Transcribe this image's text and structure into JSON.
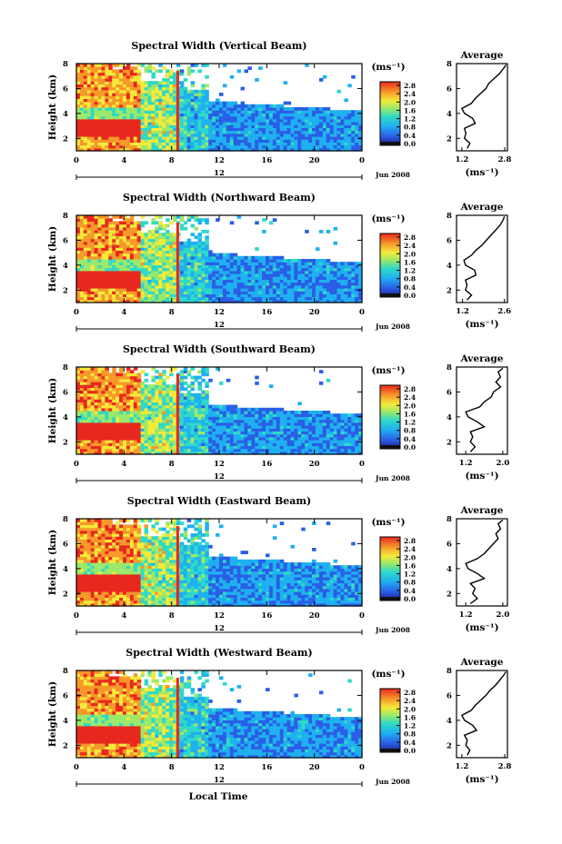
{
  "figure": {
    "bottom_label": "Local Time"
  },
  "chart_data": [
    {
      "type": "heatmap",
      "title": "Spectral Width (Vertical Beam)",
      "ylabel": "Height (km)",
      "yticks": [
        "2",
        "4",
        "6",
        "8"
      ],
      "ylim": [
        1,
        8
      ],
      "xticks": [
        "0",
        "4",
        "8",
        "12",
        "16",
        "20",
        "0"
      ],
      "xlim": [
        0,
        24
      ],
      "date_label": "Jun 2008",
      "date_center_tick": "12",
      "colorbar": {
        "unit": "(ms⁻¹)",
        "ticks": [
          "2.8",
          "2.4",
          "2.0",
          "1.6",
          "1.2",
          "0.8",
          "0.4",
          "0.0"
        ],
        "range": [
          0,
          2.8
        ]
      },
      "profile": {
        "title": "Average",
        "xlabel": "(ms⁻¹)",
        "xticks": [
          "1.2",
          "2.8"
        ],
        "xlim": [
          1.0,
          2.9
        ],
        "yticks": [
          "2",
          "4",
          "6",
          "8"
        ],
        "ylim": [
          1,
          8
        ],
        "heights": [
          1.2,
          1.6,
          2.0,
          2.4,
          2.8,
          3.2,
          3.6,
          4.0,
          4.4,
          4.8,
          5.2,
          5.6,
          6.0,
          6.4,
          6.8,
          7.2,
          7.6,
          7.9
        ],
        "values": [
          1.4,
          1.5,
          1.3,
          1.35,
          1.3,
          1.7,
          1.6,
          1.3,
          1.2,
          1.55,
          1.7,
          1.9,
          2.1,
          2.2,
          2.4,
          2.6,
          2.75,
          2.85
        ]
      }
    },
    {
      "type": "heatmap",
      "title": "Spectral Width (Northward Beam)",
      "ylabel": "Height (km)",
      "yticks": [
        "2",
        "4",
        "6",
        "8"
      ],
      "ylim": [
        1,
        8
      ],
      "xticks": [
        "0",
        "4",
        "8",
        "12",
        "16",
        "20",
        "0"
      ],
      "xlim": [
        0,
        24
      ],
      "date_label": "Jun 2008",
      "date_center_tick": "12",
      "colorbar": {
        "unit": "(ms⁻¹)",
        "ticks": [
          "2.8",
          "2.4",
          "2.0",
          "1.6",
          "1.2",
          "0.8",
          "0.4",
          "0.0"
        ],
        "range": [
          0,
          2.8
        ]
      },
      "profile": {
        "title": "Average",
        "xlabel": "(ms⁻¹)",
        "xticks": [
          "1.2",
          "2.6"
        ],
        "xlim": [
          1.0,
          2.7
        ],
        "yticks": [
          "2",
          "4",
          "6",
          "8"
        ],
        "ylim": [
          1,
          8
        ],
        "heights": [
          1.2,
          1.6,
          2.0,
          2.4,
          2.8,
          3.2,
          3.6,
          4.0,
          4.4,
          4.8,
          5.2,
          5.6,
          6.0,
          6.4,
          6.8,
          7.2,
          7.6,
          7.9
        ],
        "values": [
          1.35,
          1.5,
          1.3,
          1.35,
          1.3,
          1.65,
          1.6,
          1.3,
          1.25,
          1.5,
          1.65,
          1.85,
          2.0,
          2.15,
          2.3,
          2.45,
          2.55,
          2.6
        ]
      }
    },
    {
      "type": "heatmap",
      "title": "Spectral Width (Southward Beam)",
      "ylabel": "Height (km)",
      "yticks": [
        "2",
        "4",
        "6",
        "8"
      ],
      "ylim": [
        1,
        8
      ],
      "xticks": [
        "0",
        "4",
        "8",
        "12",
        "16",
        "20",
        "0"
      ],
      "xlim": [
        0,
        24
      ],
      "date_label": "Jun 2008",
      "date_center_tick": "12",
      "colorbar": {
        "unit": "(ms⁻¹)",
        "ticks": [
          "2.8",
          "2.4",
          "2.0",
          "1.6",
          "1.2",
          "0.8",
          "0.4",
          "0.0"
        ],
        "range": [
          0,
          2.8
        ]
      },
      "profile": {
        "title": "Average",
        "xlabel": "(ms⁻¹)",
        "xticks": [
          "1.2",
          "2.0"
        ],
        "xlim": [
          1.0,
          2.1
        ],
        "yticks": [
          "2",
          "4",
          "6",
          "8"
        ],
        "ylim": [
          1,
          8
        ],
        "heights": [
          1.2,
          1.6,
          2.0,
          2.4,
          2.8,
          3.2,
          3.6,
          4.0,
          4.4,
          4.8,
          5.2,
          5.6,
          6.0,
          6.4,
          6.8,
          7.2,
          7.6,
          7.9
        ],
        "values": [
          1.3,
          1.4,
          1.3,
          1.35,
          1.3,
          1.6,
          1.45,
          1.25,
          1.2,
          1.5,
          1.6,
          1.75,
          1.8,
          1.95,
          1.85,
          1.95,
          1.9,
          2.0
        ]
      }
    },
    {
      "type": "heatmap",
      "title": "Spectral Width (Eastward Beam)",
      "ylabel": "Height (km)",
      "yticks": [
        "2",
        "4",
        "6",
        "8"
      ],
      "ylim": [
        1,
        8
      ],
      "xticks": [
        "0",
        "4",
        "8",
        "12",
        "16",
        "20",
        "0"
      ],
      "xlim": [
        0,
        24
      ],
      "date_label": "Jun 2008",
      "date_center_tick": "12",
      "colorbar": {
        "unit": "(ms⁻¹)",
        "ticks": [
          "2.8",
          "2.4",
          "2.0",
          "1.6",
          "1.2",
          "0.8",
          "0.4",
          "0.0"
        ],
        "range": [
          0,
          2.8
        ]
      },
      "profile": {
        "title": "Average",
        "xlabel": "(ms⁻¹)",
        "xticks": [
          "1.2",
          "2.0"
        ],
        "xlim": [
          1.0,
          2.1
        ],
        "yticks": [
          "2",
          "4",
          "6",
          "8"
        ],
        "ylim": [
          1,
          8
        ],
        "heights": [
          1.2,
          1.6,
          2.0,
          2.4,
          2.8,
          3.2,
          3.6,
          4.0,
          4.4,
          4.8,
          5.2,
          5.6,
          6.0,
          6.4,
          6.8,
          7.2,
          7.6,
          7.9
        ],
        "values": [
          1.3,
          1.45,
          1.35,
          1.4,
          1.3,
          1.6,
          1.45,
          1.25,
          1.2,
          1.45,
          1.6,
          1.7,
          1.8,
          1.9,
          1.85,
          1.95,
          1.9,
          2.0
        ]
      }
    },
    {
      "type": "heatmap",
      "title": "Spectral Width (Westward Beam)",
      "ylabel": "Height (km)",
      "yticks": [
        "2",
        "4",
        "6",
        "8"
      ],
      "ylim": [
        1,
        8
      ],
      "xticks": [
        "0",
        "4",
        "8",
        "12",
        "16",
        "20",
        "0"
      ],
      "xlim": [
        0,
        24
      ],
      "date_label": "Jun 2008",
      "date_center_tick": "12",
      "colorbar": {
        "unit": "(ms⁻¹)",
        "ticks": [
          "2.8",
          "2.4",
          "2.0",
          "1.6",
          "1.2",
          "0.8",
          "0.4",
          "0.0"
        ],
        "range": [
          0,
          2.8
        ]
      },
      "profile": {
        "title": "Average",
        "xlabel": "(ms⁻¹)",
        "xticks": [
          "1.2",
          "2.8"
        ],
        "xlim": [
          1.0,
          2.9
        ],
        "yticks": [
          "2",
          "4",
          "6",
          "8"
        ],
        "ylim": [
          1,
          8
        ],
        "heights": [
          1.2,
          1.6,
          2.0,
          2.4,
          2.8,
          3.2,
          3.6,
          4.0,
          4.4,
          4.8,
          5.2,
          5.6,
          6.0,
          6.4,
          6.8,
          7.2,
          7.6,
          7.9
        ],
        "values": [
          1.4,
          1.5,
          1.35,
          1.4,
          1.3,
          1.75,
          1.6,
          1.3,
          1.2,
          1.55,
          1.7,
          1.9,
          2.1,
          2.25,
          2.45,
          2.6,
          2.75,
          2.85
        ]
      }
    }
  ]
}
